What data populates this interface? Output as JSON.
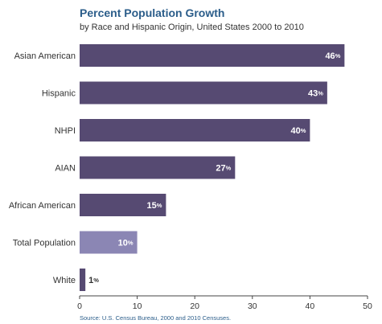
{
  "chart_data": {
    "type": "bar",
    "orientation": "horizontal",
    "title": "Percent Population Growth",
    "subtitle": "by Race and Hispanic Origin, United States 2000 to 2010",
    "categories": [
      "Asian American",
      "Hispanic",
      "NHPI",
      "AIAN",
      "African American",
      "Total Population",
      "White"
    ],
    "values": [
      46,
      43,
      40,
      27,
      15,
      10,
      1
    ],
    "value_suffix": "%",
    "xlim": [
      0,
      50
    ],
    "xticks": [
      0,
      10,
      20,
      30,
      40,
      50
    ],
    "grid": false,
    "legend": "none",
    "source": "Source: U.S. Census Bureau, 2000 and 2010 Censuses.",
    "colors": {
      "bar": "#564a72",
      "highlight_bar": "#8b86b4",
      "highlight_category": "Total Population",
      "title": "#2b5d8a",
      "axis": "#444444"
    }
  }
}
